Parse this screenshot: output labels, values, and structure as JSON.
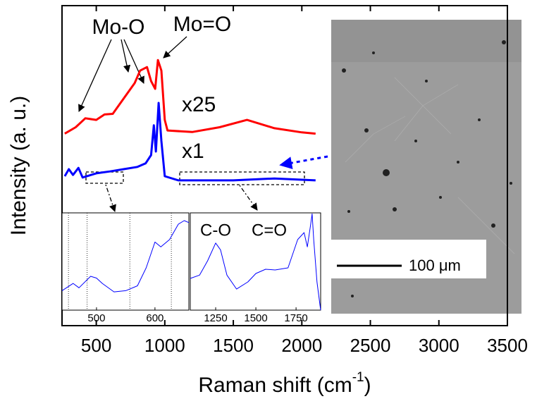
{
  "chart_data": [
    {
      "type": "line",
      "x_label": [
        "Raman shift (cm",
        "-1",
        ")"
      ],
      "y_label": "Intensity (a. u.)",
      "xlim": [
        250,
        3500
      ],
      "ylim": [
        0,
        100
      ],
      "xticks": [
        500,
        1000,
        1500,
        2000,
        2500,
        3000,
        3500
      ],
      "annotations": [
        "Mo-O",
        "Mo=O"
      ],
      "series": [
        {
          "name": "x25",
          "color": "#ff0000",
          "x": [
            270,
            350,
            420,
            500,
            560,
            620,
            700,
            780,
            820,
            870,
            900,
            930,
            950,
            975,
            1000,
            1020,
            1200,
            1400,
            1600,
            1800,
            2000,
            2100
          ],
          "values": [
            60,
            62,
            64.8,
            64.3,
            66,
            66.2,
            71,
            75.8,
            79.7,
            80.8,
            76.4,
            74,
            83,
            79.7,
            64.3,
            61,
            60.5,
            62,
            64.3,
            61.7,
            60.4,
            60
          ]
        },
        {
          "name": "x1",
          "color": "#0000ff",
          "x": [
            270,
            300,
            330,
            370,
            400,
            500,
            600,
            700,
            800,
            860,
            900,
            920,
            935,
            955,
            975,
            1000,
            1100,
            1500,
            1800,
            2100
          ],
          "values": [
            46.7,
            48.9,
            47.1,
            49.3,
            46.3,
            47.6,
            48.2,
            48.9,
            49.6,
            50.7,
            53.3,
            62.6,
            54.4,
            69.6,
            57.7,
            46.7,
            45.4,
            45.4,
            46,
            45.4
          ]
        }
      ]
    },
    {
      "type": "line",
      "xlim": [
        441,
        658
      ],
      "ylim": [
        0,
        100
      ],
      "xticks": [
        500,
        600
      ],
      "vlines": [
        452,
        484,
        557,
        628
      ],
      "series": [
        {
          "color": "#0000ff",
          "x": [
            441,
            460,
            470,
            490,
            500,
            510,
            530,
            550,
            570,
            585,
            600,
            610,
            625,
            640,
            650,
            658
          ],
          "values": [
            20,
            27.5,
            23,
            34.8,
            33,
            27.5,
            18.8,
            20,
            25,
            43.5,
            70,
            65,
            72.5,
            88.4,
            92,
            90
          ]
        }
      ]
    },
    {
      "type": "line",
      "xlim": [
        1092,
        1903
      ],
      "ylim": [
        0,
        100
      ],
      "xticks": [
        1250,
        1500,
        1750
      ],
      "annotations": [
        "C-O",
        "C=O"
      ],
      "series": [
        {
          "color": "#0000ff",
          "x": [
            1092,
            1150,
            1200,
            1250,
            1280,
            1320,
            1380,
            1450,
            1500,
            1560,
            1620,
            1700,
            1760,
            1800,
            1820,
            1840,
            1850,
            1860,
            1880,
            1903
          ],
          "values": [
            32.6,
            36,
            50.7,
            69,
            62,
            36,
            21.7,
            29,
            37.7,
            42,
            41.3,
            43.5,
            72.5,
            79.7,
            65,
            87,
            99,
            72,
            29,
            0
          ]
        }
      ]
    }
  ],
  "micrograph": {
    "scale_bar": "100 μm"
  }
}
